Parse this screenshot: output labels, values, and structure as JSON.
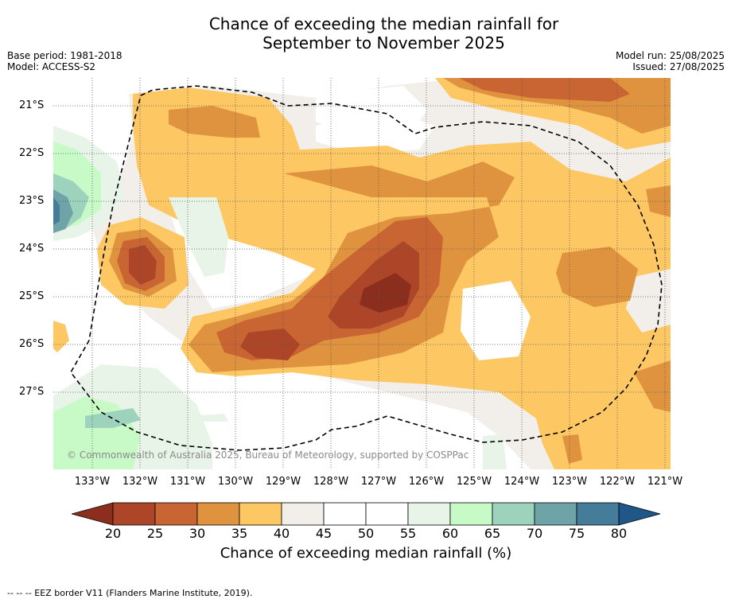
{
  "title_line1": "Chance of exceeding the median rainfall for",
  "title_line2": "September to November 2025",
  "base_period": "Base period: 1981-2018",
  "model": "Model: ACCESS-S2",
  "model_run": "Model run: 25/08/2025",
  "issued": "Issued: 27/08/2025",
  "latitude_labels": [
    "21°S",
    "22°S",
    "23°S",
    "24°S",
    "25°S",
    "26°S",
    "27°S"
  ],
  "longitude_labels": [
    "133°W",
    "132°W",
    "131°W",
    "130°W",
    "129°W",
    "128°W",
    "127°W",
    "126°W",
    "125°W",
    "124°W",
    "123°W",
    "122°W",
    "121°W"
  ],
  "copyright": "© Commonwealth of Australia 2025, Bureau of Meteorology, supported by COSPPac",
  "colorbar": {
    "ticks": [
      "20",
      "25",
      "30",
      "35",
      "40",
      "45",
      "50",
      "55",
      "60",
      "65",
      "70",
      "75",
      "80"
    ],
    "colors": [
      "#8c2e1e",
      "#ad4628",
      "#c96533",
      "#e0933e",
      "#fdc863",
      "#f2efea",
      "#ffffff",
      "#ffffff",
      "#e8f4e8",
      "#c8fac8",
      "#9dd2bd",
      "#6ea4a8",
      "#457c99",
      "#1f5788"
    ],
    "label": "Chance of exceeding median rainfall (%)"
  },
  "footnote": "-- -- -- EEZ border V11 (Flanders Marine Institute, 2019)."
}
